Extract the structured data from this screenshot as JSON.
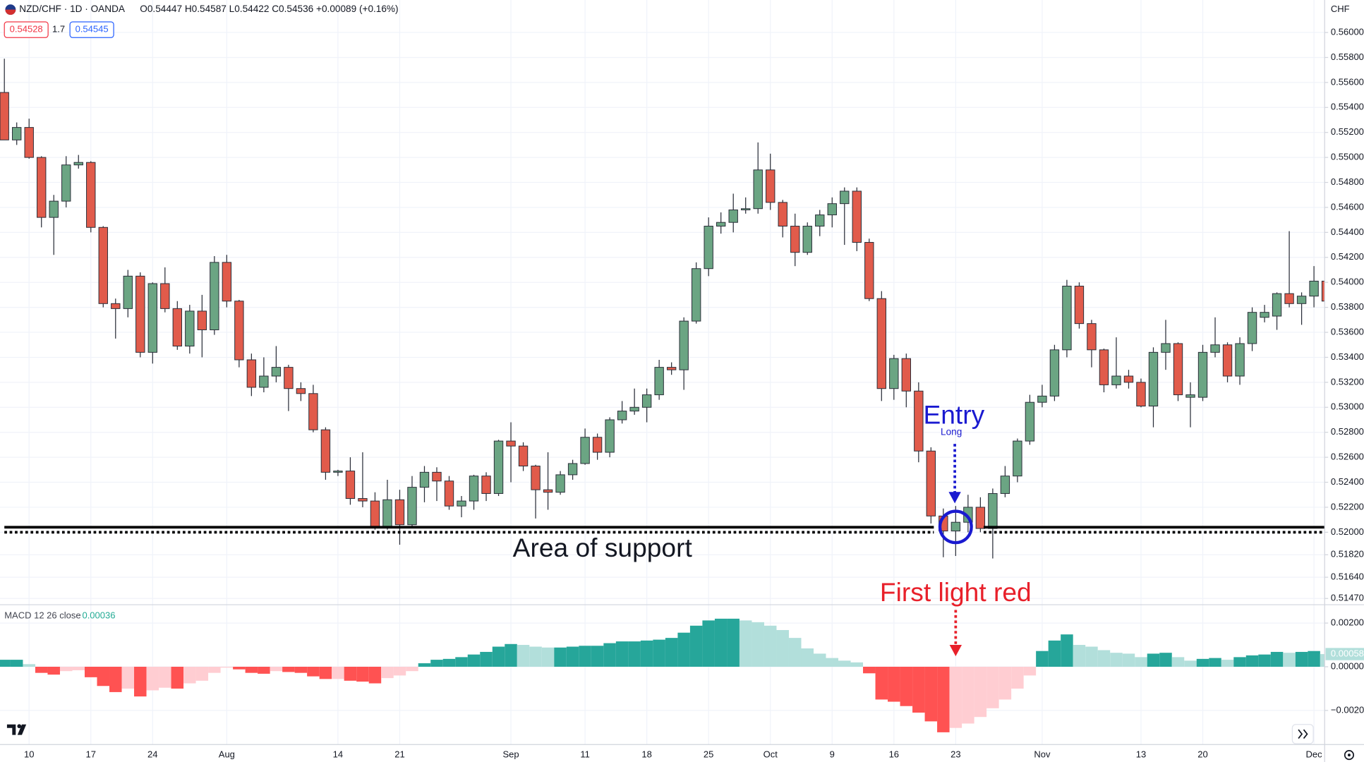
{
  "chart_data": [
    {
      "type": "candlestick",
      "title": "NZD/CHF · 1D · OANDA",
      "ohlc_readout": "O0.54447 H0.54587 L0.54422 C0.54536 +0.00089 (+0.16%)",
      "price_boxes": [
        "0.54528",
        "1.7",
        "0.54545"
      ],
      "currency": "CHF",
      "annotations": [
        "Entry",
        "Long",
        "Area of support",
        "First light red"
      ],
      "up_color": "#6ba583",
      "down_color": "#e15b4b",
      "support_line": 0.5204,
      "dotted_line": 0.52,
      "categories": [
        null,
        null,
        "10",
        null,
        null,
        null,
        null,
        "17",
        null,
        null,
        null,
        null,
        "24",
        null,
        null,
        null,
        null,
        null,
        "Aug",
        null,
        null,
        null,
        null,
        null,
        null,
        null,
        null,
        "14",
        null,
        null,
        null,
        null,
        "21",
        null,
        null,
        null,
        null,
        null,
        null,
        null,
        null,
        "Sep",
        null,
        null,
        null,
        null,
        null,
        "11",
        null,
        null,
        null,
        null,
        "18",
        null,
        null,
        null,
        null,
        "25",
        null,
        null,
        null,
        null,
        "Oct",
        null,
        null,
        null,
        null,
        "9",
        null,
        null,
        null,
        null,
        "16",
        null,
        null,
        null,
        null,
        "23",
        null,
        null,
        null,
        null,
        null,
        null,
        "Nov",
        null,
        null,
        null,
        null,
        null,
        null,
        null,
        "13",
        null,
        null,
        null,
        null,
        "20",
        null,
        null,
        null,
        null,
        null,
        null,
        null,
        null,
        "Dec",
        null
      ],
      "open": [
        0.5552,
        0.5514,
        0.5524,
        0.55,
        0.5452,
        0.5465,
        0.5494,
        0.5496,
        0.5444,
        0.5383,
        0.5379,
        0.5405,
        0.5344,
        0.5399,
        0.5379,
        0.5349,
        0.5377,
        0.5362,
        0.5416,
        0.5385,
        0.5338,
        0.5316,
        0.5325,
        0.5332,
        0.5315,
        0.5311,
        0.5282,
        0.5248,
        0.5249,
        0.5227,
        0.5225,
        0.5204,
        0.5226,
        0.5206,
        0.5236,
        0.5248,
        0.5241,
        0.5221,
        0.5225,
        0.5245,
        0.5231,
        0.5273,
        0.5269,
        0.5253,
        0.5234,
        0.5232,
        0.5246,
        0.5255,
        0.5276,
        0.5264,
        0.529,
        0.5297,
        0.53,
        0.531,
        0.5332,
        0.533,
        0.5369,
        0.5411,
        0.5445,
        0.5448,
        0.5458,
        0.5459,
        0.549,
        0.5464,
        0.5445,
        0.5424,
        0.5445,
        0.5454,
        0.5463,
        0.5473,
        0.5432,
        0.5387,
        0.5315,
        0.5339,
        0.5313,
        0.5265,
        0.5213,
        0.5201,
        0.5208,
        0.522,
        0.5203,
        0.5231,
        0.5245,
        0.5273,
        0.5304,
        0.5309,
        0.5346,
        0.5397,
        0.5367,
        0.5346,
        0.5318,
        0.5325,
        0.532,
        0.5301,
        0.5344,
        0.5351,
        0.5308,
        0.5308,
        0.5344,
        0.535,
        0.5325,
        0.5351,
        0.5372,
        0.5373,
        0.5391,
        0.5383,
        0.5389,
        0.5401
      ],
      "high": [
        0.5579,
        0.5528,
        0.5531,
        0.5501,
        0.547,
        0.5501,
        0.5502,
        0.5497,
        0.5445,
        0.5387,
        0.541,
        0.5408,
        0.54,
        0.5412,
        0.5385,
        0.5382,
        0.539,
        0.5421,
        0.5422,
        0.5386,
        0.5343,
        0.534,
        0.5349,
        0.5334,
        0.532,
        0.5318,
        0.5284,
        0.525,
        0.526,
        0.5264,
        0.5232,
        0.5242,
        0.5234,
        0.5245,
        0.5253,
        0.5252,
        0.5245,
        0.5229,
        0.5246,
        0.5248,
        0.5274,
        0.5288,
        0.5272,
        0.5254,
        0.5264,
        0.5249,
        0.5258,
        0.5283,
        0.5279,
        0.5292,
        0.5305,
        0.5315,
        0.5315,
        0.5338,
        0.5336,
        0.5372,
        0.5416,
        0.5452,
        0.5456,
        0.5471,
        0.5468,
        0.5512,
        0.5503,
        0.5466,
        0.5455,
        0.5448,
        0.5458,
        0.5468,
        0.5476,
        0.5476,
        0.5435,
        0.5393,
        0.5342,
        0.5343,
        0.532,
        0.5268,
        0.5219,
        0.5221,
        0.523,
        0.5228,
        0.5235,
        0.5253,
        0.5275,
        0.531,
        0.5318,
        0.535,
        0.5402,
        0.54,
        0.537,
        0.5347,
        0.5356,
        0.533,
        0.5323,
        0.5348,
        0.537,
        0.5352,
        0.532,
        0.535,
        0.5372,
        0.5352,
        0.5356,
        0.538,
        0.5382,
        0.5392,
        0.5441,
        0.5392,
        0.5413,
        0.5403
      ],
      "low": [
        0.5514,
        0.551,
        0.5499,
        0.5444,
        0.5422,
        0.546,
        0.5491,
        0.544,
        0.538,
        0.5355,
        0.5372,
        0.534,
        0.5335,
        0.5376,
        0.5346,
        0.5343,
        0.534,
        0.5358,
        0.538,
        0.5332,
        0.5309,
        0.5312,
        0.532,
        0.5297,
        0.5305,
        0.528,
        0.5242,
        0.5245,
        0.5222,
        0.522,
        0.5202,
        0.5202,
        0.519,
        0.5204,
        0.5224,
        0.5225,
        0.5218,
        0.5212,
        0.5218,
        0.5225,
        0.5229,
        0.524,
        0.5249,
        0.5211,
        0.5218,
        0.523,
        0.5242,
        0.5254,
        0.5258,
        0.526,
        0.5287,
        0.5294,
        0.5288,
        0.5306,
        0.5326,
        0.5314,
        0.5367,
        0.5405,
        0.5439,
        0.544,
        0.5455,
        0.5455,
        0.5458,
        0.5436,
        0.5413,
        0.5422,
        0.5437,
        0.5444,
        0.543,
        0.5425,
        0.5385,
        0.5305,
        0.5306,
        0.53,
        0.5256,
        0.5207,
        0.518,
        0.5181,
        0.52,
        0.52,
        0.5179,
        0.5228,
        0.524,
        0.527,
        0.53,
        0.5305,
        0.534,
        0.5363,
        0.5332,
        0.5312,
        0.5315,
        0.5315,
        0.53,
        0.5284,
        0.533,
        0.5305,
        0.5284,
        0.5305,
        0.534,
        0.532,
        0.5318,
        0.5345,
        0.5368,
        0.5362,
        0.538,
        0.5366,
        0.538,
        0.538
      ],
      "close": [
        0.5514,
        0.5524,
        0.55,
        0.5452,
        0.5465,
        0.5494,
        0.5496,
        0.5444,
        0.5383,
        0.5379,
        0.5405,
        0.5344,
        0.5399,
        0.5379,
        0.5349,
        0.5377,
        0.5362,
        0.5416,
        0.5385,
        0.5338,
        0.5316,
        0.5325,
        0.5332,
        0.5315,
        0.5311,
        0.5282,
        0.5248,
        0.5249,
        0.5227,
        0.5225,
        0.5204,
        0.5226,
        0.5206,
        0.5236,
        0.5248,
        0.5241,
        0.5221,
        0.5225,
        0.5245,
        0.5231,
        0.5273,
        0.5269,
        0.5253,
        0.5234,
        0.5232,
        0.5246,
        0.5255,
        0.5276,
        0.5264,
        0.529,
        0.5297,
        0.53,
        0.531,
        0.5332,
        0.533,
        0.5369,
        0.5411,
        0.5445,
        0.5448,
        0.5458,
        0.5459,
        0.549,
        0.5464,
        0.5445,
        0.5424,
        0.5445,
        0.5454,
        0.5463,
        0.5473,
        0.5432,
        0.5387,
        0.5315,
        0.5339,
        0.5313,
        0.5265,
        0.5213,
        0.5201,
        0.5208,
        0.522,
        0.5203,
        0.5231,
        0.5245,
        0.5273,
        0.5304,
        0.5309,
        0.5346,
        0.5397,
        0.5367,
        0.5346,
        0.5318,
        0.5325,
        0.532,
        0.5301,
        0.5344,
        0.5351,
        0.531,
        0.531,
        0.5344,
        0.535,
        0.5325,
        0.5351,
        0.5376,
        0.5376,
        0.5391,
        0.5383,
        0.5389,
        0.5401,
        0.5385
      ],
      "ylim": [
        0.5142,
        0.5626
      ],
      "yticks": [
        {
          "value": 0.56,
          "label": "0.56000"
        },
        {
          "value": 0.558,
          "label": "0.55800"
        },
        {
          "value": 0.556,
          "label": "0.55600"
        },
        {
          "value": 0.554,
          "label": "0.55400"
        },
        {
          "value": 0.552,
          "label": "0.55200"
        },
        {
          "value": 0.55,
          "label": "0.55000"
        },
        {
          "value": 0.548,
          "label": "0.54800"
        },
        {
          "value": 0.546,
          "label": "0.54600"
        },
        {
          "value": 0.544,
          "label": "0.54400"
        },
        {
          "value": 0.542,
          "label": "0.54200"
        },
        {
          "value": 0.54,
          "label": "0.54000"
        },
        {
          "value": 0.538,
          "label": "0.53800"
        },
        {
          "value": 0.536,
          "label": "0.53600"
        },
        {
          "value": 0.534,
          "label": "0.53400"
        },
        {
          "value": 0.532,
          "label": "0.53200"
        },
        {
          "value": 0.53,
          "label": "0.53000"
        },
        {
          "value": 0.528,
          "label": "0.52800"
        },
        {
          "value": 0.526,
          "label": "0.52600"
        },
        {
          "value": 0.524,
          "label": "0.52400"
        },
        {
          "value": 0.522,
          "label": "0.52200"
        },
        {
          "value": 0.52,
          "label": "0.52000"
        },
        {
          "value": 0.5182,
          "label": "0.51820"
        },
        {
          "value": 0.5164,
          "label": "0.51640"
        },
        {
          "value": 0.5147,
          "label": "0.51470"
        }
      ],
      "grid": true
    },
    {
      "type": "bar",
      "title": "MACD 12 26 close",
      "readout": "0.00036",
      "last_value_label": "0.00058",
      "palette": [
        "#26a69a",
        "#b2dfdb",
        "#ff5252",
        "#ffcdd2"
      ],
      "values": [
        0.00032,
        0.00032,
        0.00012,
        -0.00028,
        -0.00036,
        -0.0002,
        -0.00016,
        -0.00048,
        -0.00088,
        -0.00116,
        -0.001,
        -0.00136,
        -0.00108,
        -0.00096,
        -0.001,
        -0.00076,
        -0.00064,
        -0.00028,
        -4e-05,
        -0.00012,
        -0.00028,
        -0.00032,
        -0.0002,
        -0.00024,
        -0.00028,
        -0.00044,
        -0.00056,
        -0.00056,
        -0.00064,
        -0.00068,
        -0.00076,
        -0.00052,
        -0.0004,
        -0.0002,
        0.00016,
        0.00032,
        0.00036,
        0.00044,
        0.00056,
        0.00068,
        0.00092,
        0.00104,
        0.001,
        0.00092,
        0.00088,
        0.00088,
        0.00092,
        0.00096,
        0.00096,
        0.00108,
        0.00116,
        0.00116,
        0.0012,
        0.00124,
        0.00132,
        0.00156,
        0.00188,
        0.00212,
        0.0022,
        0.0022,
        0.00212,
        0.00204,
        0.00188,
        0.00168,
        0.00132,
        0.00084,
        0.0006,
        0.0004,
        0.00028,
        0.0002,
        -0.0003,
        -0.0015,
        -0.0016,
        -0.0018,
        -0.0021,
        -0.0025,
        -0.003,
        -0.0028,
        -0.0026,
        -0.0023,
        -0.0019,
        -0.0015,
        -0.001,
        -0.0004,
        0.00072,
        0.0012,
        0.00148,
        0.001,
        0.00092,
        0.00076,
        0.00064,
        0.0006,
        0.00044,
        0.0006,
        0.00064,
        0.00044,
        0.00028,
        0.00036,
        0.0004,
        0.00032,
        0.00044,
        0.00052,
        0.00056,
        0.00068,
        0.00064,
        0.00068,
        0.00072,
        0.00058
      ],
      "ylim": [
        -0.00356,
        0.00284
      ],
      "yticks": [
        {
          "value": 0.002,
          "label": "0.00200"
        },
        {
          "value": 0,
          "label": "0.00000"
        },
        {
          "value": -0.002,
          "label": "−0.00200"
        }
      ],
      "grid": true
    }
  ]
}
